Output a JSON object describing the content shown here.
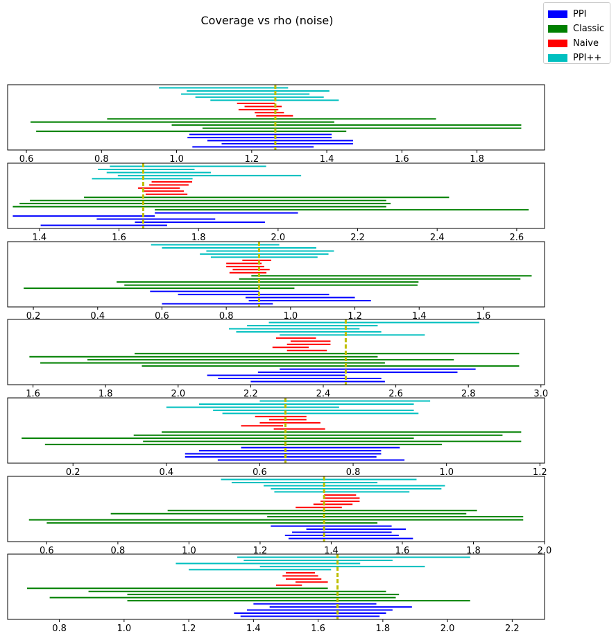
{
  "chart_data": {
    "type": "interval",
    "title": "Coverage vs rho (noise)",
    "legend": {
      "placement": "upper right",
      "entries": [
        {
          "name": "PPI",
          "color": "#0000ff"
        },
        {
          "name": "Classic",
          "color": "#008000"
        },
        {
          "name": "Naive",
          "color": "#ff0000"
        },
        {
          "name": "PPI++",
          "color": "#00bfbf"
        }
      ]
    },
    "true_value_color": "#bfbf00",
    "grid": false,
    "panels": [
      {
        "xlim": [
          0.55,
          1.98
        ],
        "xticks": [
          "0.6",
          "0.8",
          "1.0",
          "1.2",
          "1.4",
          "1.6",
          "1.8"
        ],
        "xtick_values": [
          0.6,
          0.8,
          1.0,
          1.2,
          1.4,
          1.6,
          1.8
        ],
        "true_value": 1.263,
        "intervals": {
          "PPI++": [
            [
              0.953,
              1.297
            ],
            [
              1.027,
              1.407
            ],
            [
              1.012,
              1.354
            ],
            [
              1.05,
              1.392
            ],
            [
              1.09,
              1.432
            ]
          ],
          "Naive": [
            [
              1.161,
              1.262
            ],
            [
              1.181,
              1.28
            ],
            [
              1.165,
              1.271
            ],
            [
              1.208,
              1.286
            ],
            [
              1.212,
              1.31
            ]
          ],
          "Classic": [
            [
              0.815,
              1.691
            ],
            [
              0.611,
              1.42
            ],
            [
              0.987,
              1.918
            ],
            [
              1.069,
              1.918
            ],
            [
              0.626,
              1.452
            ]
          ],
          "PPI": [
            [
              1.034,
              1.413
            ],
            [
              1.029,
              1.413
            ],
            [
              1.082,
              1.47
            ],
            [
              1.12,
              1.47
            ],
            [
              1.042,
              1.365
            ]
          ]
        }
      },
      {
        "xlim": [
          1.32,
          2.67
        ],
        "xticks": [
          "1.4",
          "1.6",
          "1.8",
          "2.0",
          "2.2",
          "2.4",
          "2.6"
        ],
        "xtick_values": [
          1.4,
          1.6,
          1.8,
          2.0,
          2.2,
          2.4,
          2.6
        ],
        "true_value": 1.661,
        "intervals": {
          "PPI++": [
            [
              1.577,
              1.97
            ],
            [
              1.547,
              1.79
            ],
            [
              1.569,
              1.831
            ],
            [
              1.597,
              2.058
            ],
            [
              1.532,
              1.785
            ]
          ],
          "Naive": [
            [
              1.682,
              1.784
            ],
            [
              1.676,
              1.775
            ],
            [
              1.648,
              1.753
            ],
            [
              1.661,
              1.763
            ],
            [
              1.667,
              1.772
            ]
          ],
          "Classic": [
            [
              1.512,
              2.43
            ],
            [
              1.376,
              2.272
            ],
            [
              1.35,
              2.283
            ],
            [
              1.333,
              2.272
            ],
            [
              1.69,
              2.63
            ]
          ],
          "PPI": [
            [
              1.69,
              2.05
            ],
            [
              1.333,
              1.69
            ],
            [
              1.544,
              1.842
            ],
            [
              1.64,
              1.967
            ],
            [
              1.403,
              1.721
            ]
          ]
        }
      },
      {
        "xlim": [
          0.12,
          1.79
        ],
        "xticks": [
          "0.2",
          "0.4",
          "0.6",
          "0.8",
          "1.0",
          "1.2",
          "1.4",
          "1.6"
        ],
        "xtick_values": [
          0.2,
          0.4,
          0.6,
          0.8,
          1.0,
          1.2,
          1.4,
          1.6
        ],
        "true_value": 0.902,
        "intervals": {
          "PPI++": [
            [
              0.566,
              0.965
            ],
            [
              0.6,
              1.08
            ],
            [
              0.738,
              1.135
            ],
            [
              0.718,
              1.118
            ],
            [
              0.752,
              1.084
            ]
          ],
          "Naive": [
            [
              0.85,
              0.94
            ],
            [
              0.8,
              0.91
            ],
            [
              0.8,
              0.918
            ],
            [
              0.82,
              0.935
            ],
            [
              0.81,
              0.925
            ]
          ],
          "Classic": [
            [
              0.878,
              1.75
            ],
            [
              0.84,
              1.715
            ],
            [
              0.459,
              1.398
            ],
            [
              0.483,
              1.395
            ],
            [
              0.17,
              1.012
            ]
          ],
          "PPI": [
            [
              0.563,
              0.902
            ],
            [
              0.65,
              1.12
            ],
            [
              0.86,
              1.2
            ],
            [
              0.87,
              1.25
            ],
            [
              0.6,
              0.945
            ]
          ]
        }
      },
      {
        "xlim": [
          1.53,
          3.01
        ],
        "xticks": [
          "1.6",
          "1.8",
          "2.0",
          "2.2",
          "2.4",
          "2.6",
          "2.8",
          "3.0"
        ],
        "xtick_values": [
          1.6,
          1.8,
          2.0,
          2.2,
          2.4,
          2.6,
          2.8,
          3.0
        ],
        "true_value": 2.462,
        "intervals": {
          "PPI++": [
            [
              2.25,
              2.83
            ],
            [
              2.19,
              2.55
            ],
            [
              2.14,
              2.5
            ],
            [
              2.16,
              2.56
            ],
            [
              2.28,
              2.68
            ]
          ],
          "Naive": [
            [
              2.27,
              2.38
            ],
            [
              2.31,
              2.42
            ],
            [
              2.3,
              2.42
            ],
            [
              2.26,
              2.36
            ],
            [
              2.3,
              2.41
            ]
          ],
          "Classic": [
            [
              1.88,
              2.94
            ],
            [
              1.59,
              2.55
            ],
            [
              1.75,
              2.76
            ],
            [
              1.62,
              2.57
            ],
            [
              1.9,
              2.94
            ]
          ],
          "PPI": [
            [
              2.28,
              2.82
            ],
            [
              2.22,
              2.77
            ],
            [
              2.08,
              2.46
            ],
            [
              2.11,
              2.56
            ],
            [
              2.2,
              2.57
            ]
          ]
        }
      },
      {
        "xlim": [
          0.06,
          1.21
        ],
        "xticks": [
          "0.2",
          "0.4",
          "0.6",
          "0.8",
          "1.0",
          "1.2"
        ],
        "xtick_values": [
          0.2,
          0.4,
          0.6,
          0.8,
          1.0,
          1.2
        ],
        "true_value": 0.655,
        "intervals": {
          "PPI++": [
            [
              0.6,
              0.965
            ],
            [
              0.47,
              0.93
            ],
            [
              0.4,
              0.77
            ],
            [
              0.5,
              0.93
            ],
            [
              0.52,
              0.94
            ]
          ],
          "Naive": [
            [
              0.59,
              0.7
            ],
            [
              0.62,
              0.7
            ],
            [
              0.6,
              0.73
            ],
            [
              0.56,
              0.65
            ],
            [
              0.63,
              0.74
            ]
          ],
          "Classic": [
            [
              0.39,
              1.16
            ],
            [
              0.33,
              1.12
            ],
            [
              0.09,
              0.93
            ],
            [
              0.35,
              1.16
            ],
            [
              0.14,
              0.99
            ]
          ],
          "PPI": [
            [
              0.56,
              0.9
            ],
            [
              0.47,
              0.86
            ],
            [
              0.44,
              0.86
            ],
            [
              0.44,
              0.85
            ],
            [
              0.51,
              0.91
            ]
          ]
        }
      },
      {
        "xlim": [
          0.49,
          2.0
        ],
        "xticks": [
          "0.6",
          "0.8",
          "1.0",
          "1.2",
          "1.4",
          "1.6",
          "1.8",
          "2.0"
        ],
        "xtick_values": [
          0.6,
          0.8,
          1.0,
          1.2,
          1.4,
          1.6,
          1.8,
          2.0
        ],
        "true_value": 1.38,
        "intervals": {
          "PPI++": [
            [
              1.09,
              1.64
            ],
            [
              1.12,
              1.53
            ],
            [
              1.21,
              1.72
            ],
            [
              1.23,
              1.71
            ],
            [
              1.24,
              1.62
            ]
          ],
          "Naive": [
            [
              1.38,
              1.47
            ],
            [
              1.38,
              1.48
            ],
            [
              1.37,
              1.48
            ],
            [
              1.35,
              1.46
            ],
            [
              1.3,
              1.43
            ]
          ],
          "Classic": [
            [
              0.94,
              1.81
            ],
            [
              0.78,
              1.78
            ],
            [
              1.22,
              1.94
            ],
            [
              0.55,
              1.94
            ],
            [
              0.6,
              1.53
            ]
          ],
          "PPI": [
            [
              1.23,
              1.57
            ],
            [
              1.33,
              1.61
            ],
            [
              1.29,
              1.57
            ],
            [
              1.27,
              1.59
            ],
            [
              1.28,
              1.63
            ]
          ]
        }
      },
      {
        "xlim": [
          0.64,
          2.3
        ],
        "xticks": [
          "0.8",
          "1.0",
          "1.2",
          "1.4",
          "1.6",
          "1.8",
          "2.0",
          "2.2"
        ],
        "xtick_values": [
          0.8,
          1.0,
          1.2,
          1.4,
          1.6,
          1.8,
          2.0,
          2.2
        ],
        "true_value": 1.66,
        "intervals": {
          "PPI++": [
            [
              1.35,
              2.07
            ],
            [
              1.37,
              1.83
            ],
            [
              1.16,
              1.73
            ],
            [
              1.42,
              1.93
            ],
            [
              1.2,
              1.64
            ]
          ],
          "Naive": [
            [
              1.5,
              1.59
            ],
            [
              1.49,
              1.6
            ],
            [
              1.5,
              1.61
            ],
            [
              1.53,
              1.63
            ],
            [
              1.47,
              1.55
            ]
          ],
          "Classic": [
            [
              0.7,
              1.63
            ],
            [
              0.89,
              1.81
            ],
            [
              1.01,
              1.85
            ],
            [
              0.77,
              1.84
            ],
            [
              1.01,
              2.07
            ]
          ],
          "PPI": [
            [
              1.4,
              1.78
            ],
            [
              1.45,
              1.89
            ],
            [
              1.38,
              1.83
            ],
            [
              1.34,
              1.81
            ],
            [
              1.36,
              1.79
            ]
          ]
        }
      }
    ]
  }
}
